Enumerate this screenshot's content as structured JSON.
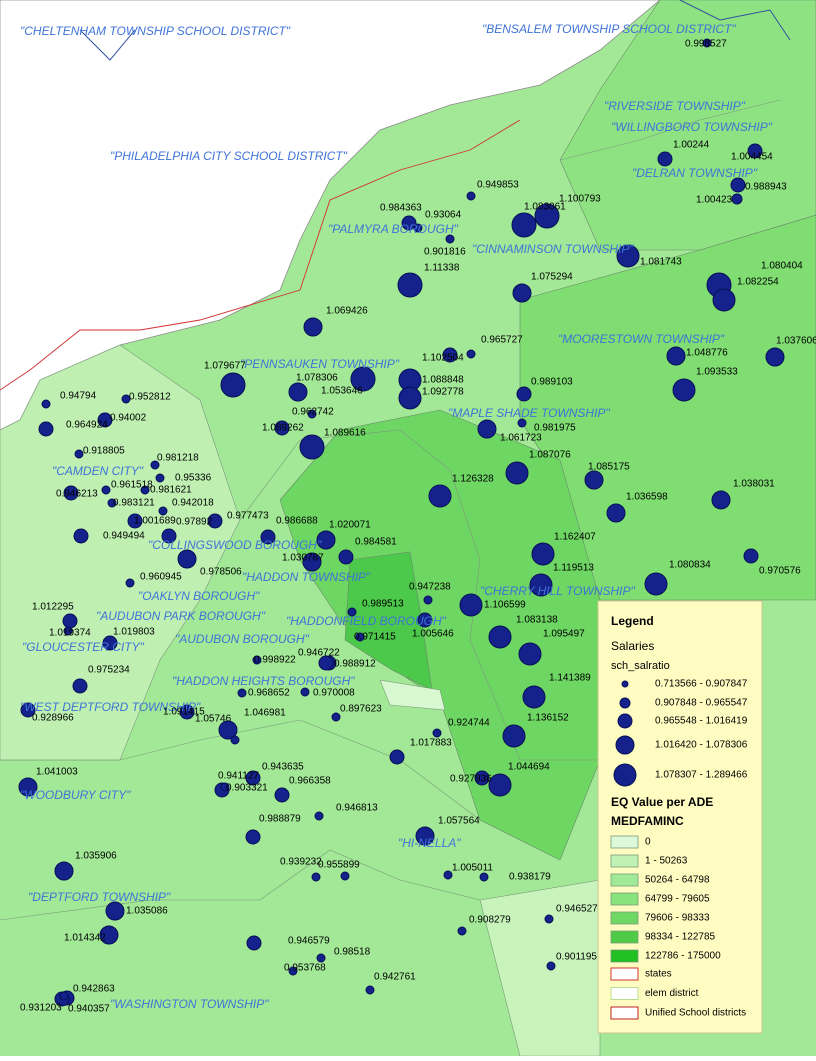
{
  "districts": [
    "\"CHELTENHAM TOWNSHIP SCHOOL DISTRICT\"",
    "\"BENSALEM TOWNSHIP SCHOOL DISTRICT\"",
    "\"RIVERSIDE TOWNSHIP\"",
    "\"WILLINGBORO TOWNSHIP\"",
    "\"PHILADELPHIA CITY SCHOOL DISTRICT\"",
    "\"DELRAN TOWNSHIP\"",
    "\"PALMYRA BOROUGH\"",
    "\"CINNAMINSON TOWNSHIP\"",
    "\"MOORESTOWN TOWNSHIP\"",
    "\"PENNSAUKEN TOWNSHIP\"",
    "\"MAPLE SHADE TOWNSHIP\"",
    "\"CAMDEN CITY\"",
    "\"COLLINGSWOOD BOROUGH\"",
    "\"HADDON TOWNSHIP\"",
    "\"CHERRY HILL TOWNSHIP\"",
    "\"OAKLYN BOROUGH\"",
    "\"AUDUBON PARK BOROUGH\"",
    "\"HADDONFIELD BOROUGH\"",
    "\"AUDUBON BOROUGH\"",
    "\"GLOUCESTER CITY\"",
    "\"HADDON HEIGHTS BOROUGH\"",
    "\"WEST DEPTFORD TOWNSHIP\"",
    "\"WOODBURY CITY\"",
    "\"HI-NELLA\"",
    "\"DEPTFORD TOWNSHIP\"",
    "\"WASHINGTON TOWNSHIP\""
  ],
  "points": [
    "0.998527",
    "1.00244",
    "1.004454",
    "0.988943",
    "1.00423",
    "0.949853",
    "0.984363",
    "0.93064",
    "1.083061",
    "1.100793",
    "0.901816",
    "1.11338",
    "1.075294",
    "1.081743",
    "1.080404",
    "1.082254",
    "1.069426",
    "0.965727",
    "1.102504",
    "1.037606",
    "1.048776",
    "1.093533",
    "1.079677",
    "1.078306",
    "1.053646",
    "1.088848",
    "1.092778",
    "0.989103",
    "0.94794",
    "0.952812",
    "0.94002",
    "0.964924",
    "0.962742",
    "1.089262",
    "1.089616",
    "0.981975",
    "1.061723",
    "0.918805",
    "0.981218",
    "1.087076",
    "1.085175",
    "0.95336",
    "0.961518",
    "0.981621",
    "0.946213",
    "1.126328",
    "1.036598",
    "1.038031",
    "0.983121",
    "0.942018",
    "0.977473",
    "0.986688",
    "1.020071",
    "1.001689",
    "0.97892",
    "0.949494",
    "0.984581",
    "1.030787",
    "1.162407",
    "1.119513",
    "0.970576",
    "1.080834",
    "0.960945",
    "0.978506",
    "0.947238",
    "0.989513",
    "1.106599",
    "1.012295",
    "1.019803",
    "1.019374",
    "0.971415",
    "1.005646",
    "1.083138",
    "1.095497",
    "0.946722",
    "0.998922",
    "0.988912",
    "0.975234",
    "0.968652",
    "0.970008",
    "1.141389",
    "0.897623",
    "0.928966",
    "1.091415",
    "1.05746",
    "1.046981",
    "0.924744",
    "1.136152",
    "1.017883",
    "1.041003",
    "1.044694",
    "0.927936",
    "0.943635",
    "0.941127",
    "0.966358",
    "0.903321",
    "0.946813",
    "0.988879",
    "1.057564",
    "1.005011",
    "0.938179",
    "1.035906",
    "0.939232",
    "0.955899",
    "1.035086",
    "0.908279",
    "0.946527",
    "1.014342",
    "0.946579",
    "0.98518",
    "0.953768",
    "0.901195",
    "0.942761",
    "0.942863",
    "0.931203",
    "0.940357"
  ],
  "legend": {
    "title": "Legend",
    "salaries": "Salaries",
    "field": "sch_salratio",
    "salary_classes": [
      "0.713566 - 0.907847",
      "0.907848 - 0.965547",
      "0.965548 - 1.016419",
      "1.016420 - 1.078306",
      "1.078307 - 1.289466"
    ],
    "eq_title": "EQ Value per ADE",
    "eq_field": "MEDFAMINC",
    "eq_classes": [
      "0",
      "1 - 50263",
      "50264 - 64798",
      "64799 - 79605",
      "79606 - 98333",
      "98334 - 122785",
      "122786 - 175000"
    ],
    "boundaries": [
      "states",
      "elem district",
      "Unified School districts"
    ]
  }
}
